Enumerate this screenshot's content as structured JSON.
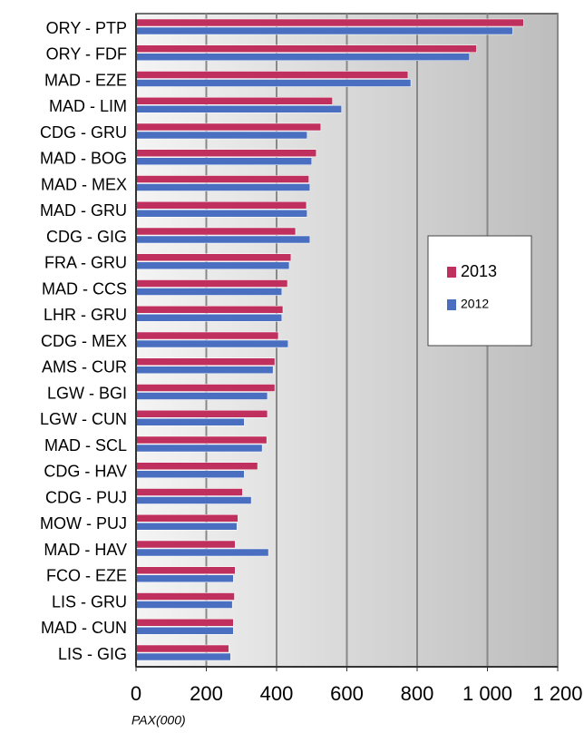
{
  "chart_data": {
    "type": "hbar",
    "categories": [
      "ORY - PTP",
      "ORY - FDF",
      "MAD - EZE",
      "MAD - LIM",
      "CDG - GRU",
      "MAD - BOG",
      "MAD - MEX",
      "MAD - GRU",
      "CDG - GIG",
      "FRA - GRU",
      "MAD - CCS",
      "LHR - GRU",
      "CDG - MEX",
      "AMS - CUR",
      "LGW - BGI",
      "LGW - CUN",
      "MAD - SCL",
      "CDG - HAV",
      "CDG - PUJ",
      "MOW - PUJ",
      "MAD - HAV",
      "FCO - EZE",
      "LIS - GRU",
      "MAD - CUN",
      "LIS - GIG"
    ],
    "series": [
      {
        "name": "2013",
        "color": "#c0305e",
        "values": [
          1103,
          969,
          774,
          559,
          526,
          513,
          492,
          485,
          454,
          441,
          431,
          418,
          405,
          395,
          395,
          374,
          372,
          346,
          303,
          290,
          282,
          282,
          280,
          277,
          264
        ]
      },
      {
        "name": "2012",
        "color": "#4a6fc0",
        "values": [
          1072,
          949,
          782,
          585,
          487,
          500,
          495,
          487,
          495,
          436,
          415,
          415,
          433,
          390,
          374,
          308,
          359,
          308,
          328,
          287,
          377,
          277,
          274,
          277,
          269
        ]
      }
    ],
    "xlim": [
      0,
      1200
    ],
    "xticks": [
      0,
      200,
      400,
      600,
      800,
      {
        "value": 1000,
        "label": "1 000"
      },
      {
        "value": 1200,
        "label": "1 200"
      }
    ],
    "xlabel": "PAX(000)",
    "grid": true
  }
}
